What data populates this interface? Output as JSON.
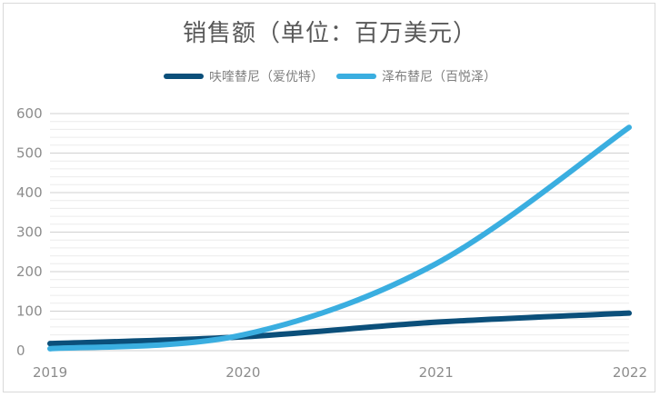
{
  "chart_data": {
    "type": "line",
    "title": "销售额（单位：百万美元）",
    "xlabel": "",
    "ylabel": "",
    "x": [
      2019,
      2020,
      2021,
      2022
    ],
    "x_ticks": [
      "2019",
      "2020",
      "2021",
      "2022"
    ],
    "ylim": [
      0,
      600
    ],
    "y_ticks": [
      "0",
      "100",
      "200",
      "300",
      "400",
      "500",
      "600"
    ],
    "grid": true,
    "legend_position": "top",
    "series": [
      {
        "name": "呋喹替尼（爱优特）",
        "color": "#0b4f7a",
        "values": [
          18,
          35,
          72,
          95
        ]
      },
      {
        "name": "泽布替尼（百悦泽）",
        "color": "#3aaee0",
        "values": [
          5,
          40,
          220,
          565
        ]
      }
    ]
  }
}
